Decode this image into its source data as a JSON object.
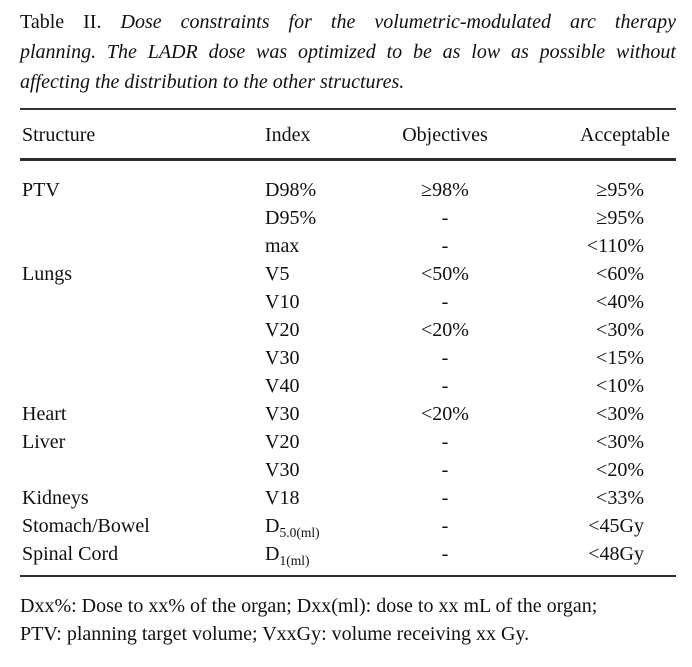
{
  "caption": {
    "label": "Table II.",
    "line1": "Dose constraints for the volumetric-modulated arc therapy",
    "line2": "planning. The LADR dose was optimized to be as low as possible without",
    "line3": "affecting the distribution to the other structures."
  },
  "table": {
    "columns": [
      "Structure",
      "Index",
      "Objectives",
      "Acceptable"
    ],
    "rows": [
      {
        "structure": "PTV",
        "index": "D98%",
        "objectives": "≥98%",
        "acceptable": "≥95%"
      },
      {
        "structure": "",
        "index": "D95%",
        "objectives": "-",
        "acceptable": "≥95%"
      },
      {
        "structure": "",
        "index": "max",
        "objectives": "-",
        "acceptable": "<110%"
      },
      {
        "structure": "Lungs",
        "index": "V5",
        "objectives": "<50%",
        "acceptable": "<60%"
      },
      {
        "structure": "",
        "index": "V10",
        "objectives": "-",
        "acceptable": "<40%"
      },
      {
        "structure": "",
        "index": "V20",
        "objectives": "<20%",
        "acceptable": "<30%"
      },
      {
        "structure": "",
        "index": "V30",
        "objectives": "-",
        "acceptable": "<15%"
      },
      {
        "structure": "",
        "index": "V40",
        "objectives": "-",
        "acceptable": "<10%"
      },
      {
        "structure": "Heart",
        "index": "V30",
        "objectives": "<20%",
        "acceptable": "<30%"
      },
      {
        "structure": "Liver",
        "index": "V20",
        "objectives": "-",
        "acceptable": "<30%"
      },
      {
        "structure": "",
        "index": "V30",
        "objectives": "-",
        "acceptable": "<20%"
      },
      {
        "structure": "Kidneys",
        "index": "V18",
        "objectives": "-",
        "acceptable": "<33%"
      },
      {
        "structure": "Stomach/Bowel",
        "index": "D",
        "index_sub": "5.0(ml)",
        "objectives": "-",
        "acceptable": "<45Gy"
      },
      {
        "structure": "Spinal Cord",
        "index": "D",
        "index_sub": "1(ml)",
        "objectives": "-",
        "acceptable": "<48Gy"
      }
    ]
  },
  "footnote": {
    "line1": "Dxx%: Dose to xx% of the organ; Dxx(ml): dose to xx mL of the organ;",
    "line2": "PTV: planning target volume; VxxGy: volume receiving xx Gy."
  },
  "colors": {
    "text": "#101010",
    "rule": "#2b2b2b",
    "background": "#ffffff"
  }
}
